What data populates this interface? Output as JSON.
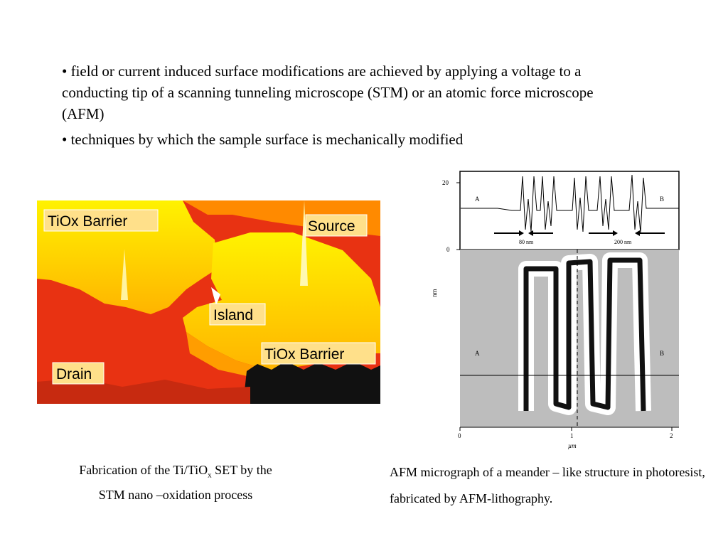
{
  "bullets": [
    "• field or current induced surface modifications are achieved by applying a voltage to a conducting tip of a scanning tunneling microscope (STM) or an atomic force microscope (AFM)",
    "• techniques by which the sample surface is mechanically modified"
  ],
  "stm_image": {
    "labels": {
      "barrier_top": "TiOx  Barrier",
      "source": "Source",
      "island": "Island",
      "barrier_bottom": "TiOx  Barrier",
      "drain": "Drain"
    },
    "colors": {
      "bg": "#e83212",
      "yellow": "#ffd200",
      "orange": "#ff8a00",
      "dark": "#111111"
    }
  },
  "afm_image": {
    "profile_y_ticks": [
      "20",
      "0"
    ],
    "labels": {
      "a": "A",
      "b": "B",
      "w80": "80 nm",
      "w200": "200 nm"
    },
    "y_axis_label": "nm",
    "x_ticks": [
      "0",
      "1",
      "2"
    ],
    "x_axis_label": "µm"
  },
  "captions": {
    "left_pre": "Fabrication of the Ti/TiO",
    "left_sub": "x",
    "left_post": " SET by the STM nano –oxidation process",
    "right": "AFM micrograph of a meander – like structure in photoresist, fabricated by AFM-lithography."
  }
}
